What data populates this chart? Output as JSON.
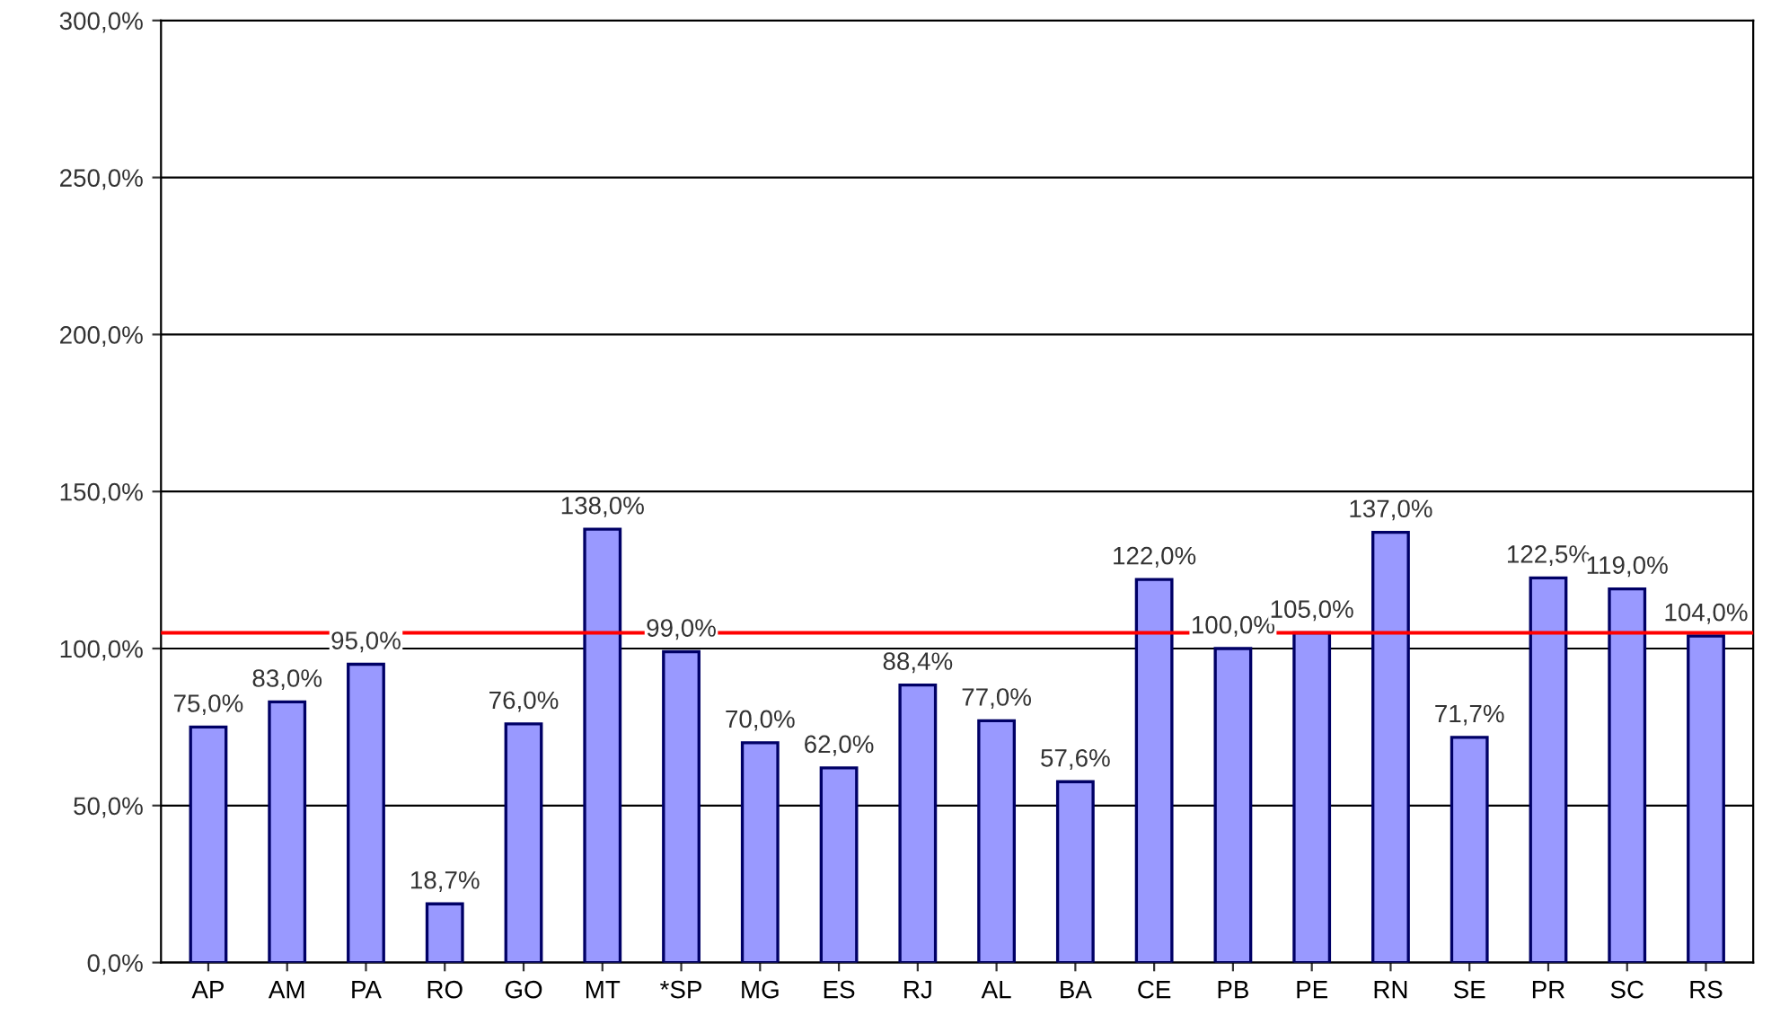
{
  "chart_data": {
    "type": "bar",
    "categories": [
      "AP",
      "AM",
      "PA",
      "RO",
      "GO",
      "MT",
      "*SP",
      "MG",
      "ES",
      "RJ",
      "AL",
      "BA",
      "CE",
      "PB",
      "PE",
      "RN",
      "SE",
      "PR",
      "SC",
      "RS"
    ],
    "values": [
      75.0,
      83.0,
      95.0,
      18.7,
      76.0,
      138.0,
      99.0,
      70.0,
      62.0,
      88.4,
      77.0,
      57.6,
      122.0,
      100.0,
      105.0,
      137.0,
      71.7,
      122.5,
      119.0,
      104.0
    ],
    "value_labels": [
      "75,0%",
      "83,0%",
      "95,0%",
      "18,7%",
      "76,0%",
      "138,0%",
      "99,0%",
      "70,0%",
      "62,0%",
      "88,4%",
      "77,0%",
      "57,6%",
      "122,0%",
      "100,0%",
      "105,0%",
      "137,0%",
      "71,7%",
      "122,5%",
      "119,0%",
      "104,0%"
    ],
    "color": "#9999ff",
    "ylim": [
      0,
      300
    ],
    "yticks": [
      {
        "value": 0,
        "label": "0,0%"
      },
      {
        "value": 50,
        "label": "50,0%"
      },
      {
        "value": 100,
        "label": "100,0%"
      },
      {
        "value": 150,
        "label": "150,0%"
      },
      {
        "value": 200,
        "label": "200,0%"
      },
      {
        "value": 250,
        "label": "250,0%"
      },
      {
        "value": 300,
        "label": "300,0%"
      }
    ],
    "grid": "y",
    "ref_lines": [
      {
        "axis": "y",
        "value": 105,
        "color": "#ff0000",
        "line_style": "solid"
      }
    ]
  }
}
